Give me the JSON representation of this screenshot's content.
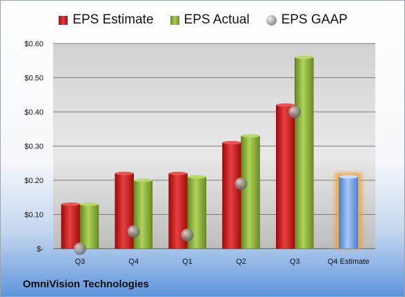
{
  "chart_data": {
    "type": "bar",
    "categories": [
      "Q3",
      "Q4",
      "Q1",
      "Q2",
      "Q3",
      "Q4 Estimate"
    ],
    "series": [
      {
        "name": "EPS Estimate",
        "values": [
          0.13,
          0.22,
          0.22,
          0.31,
          0.42,
          null
        ],
        "color": "#c81e1e"
      },
      {
        "name": "EPS Actual",
        "values": [
          0.13,
          0.2,
          0.21,
          0.33,
          0.56,
          null
        ],
        "color": "#8db33c"
      },
      {
        "name": "EPS GAAP",
        "values": [
          0.0,
          0.05,
          0.04,
          0.19,
          0.4,
          null
        ],
        "color": "#a0a0a0",
        "marker": "circle"
      }
    ],
    "estimate": {
      "category": "Q4 Estimate",
      "value": 0.21,
      "color": "#6f9fe0",
      "glow": "#f0a030"
    },
    "ylim": [
      0,
      0.6
    ],
    "yticks": [
      0,
      0.1,
      0.2,
      0.3,
      0.4,
      0.5,
      0.6
    ],
    "ytick_labels": [
      "$-",
      "$0.10",
      "$0.20",
      "$0.30",
      "$0.40",
      "$0.50",
      "$0.60"
    ],
    "legend_position": "top",
    "grid": true
  },
  "company": "OmniVision Technologies"
}
